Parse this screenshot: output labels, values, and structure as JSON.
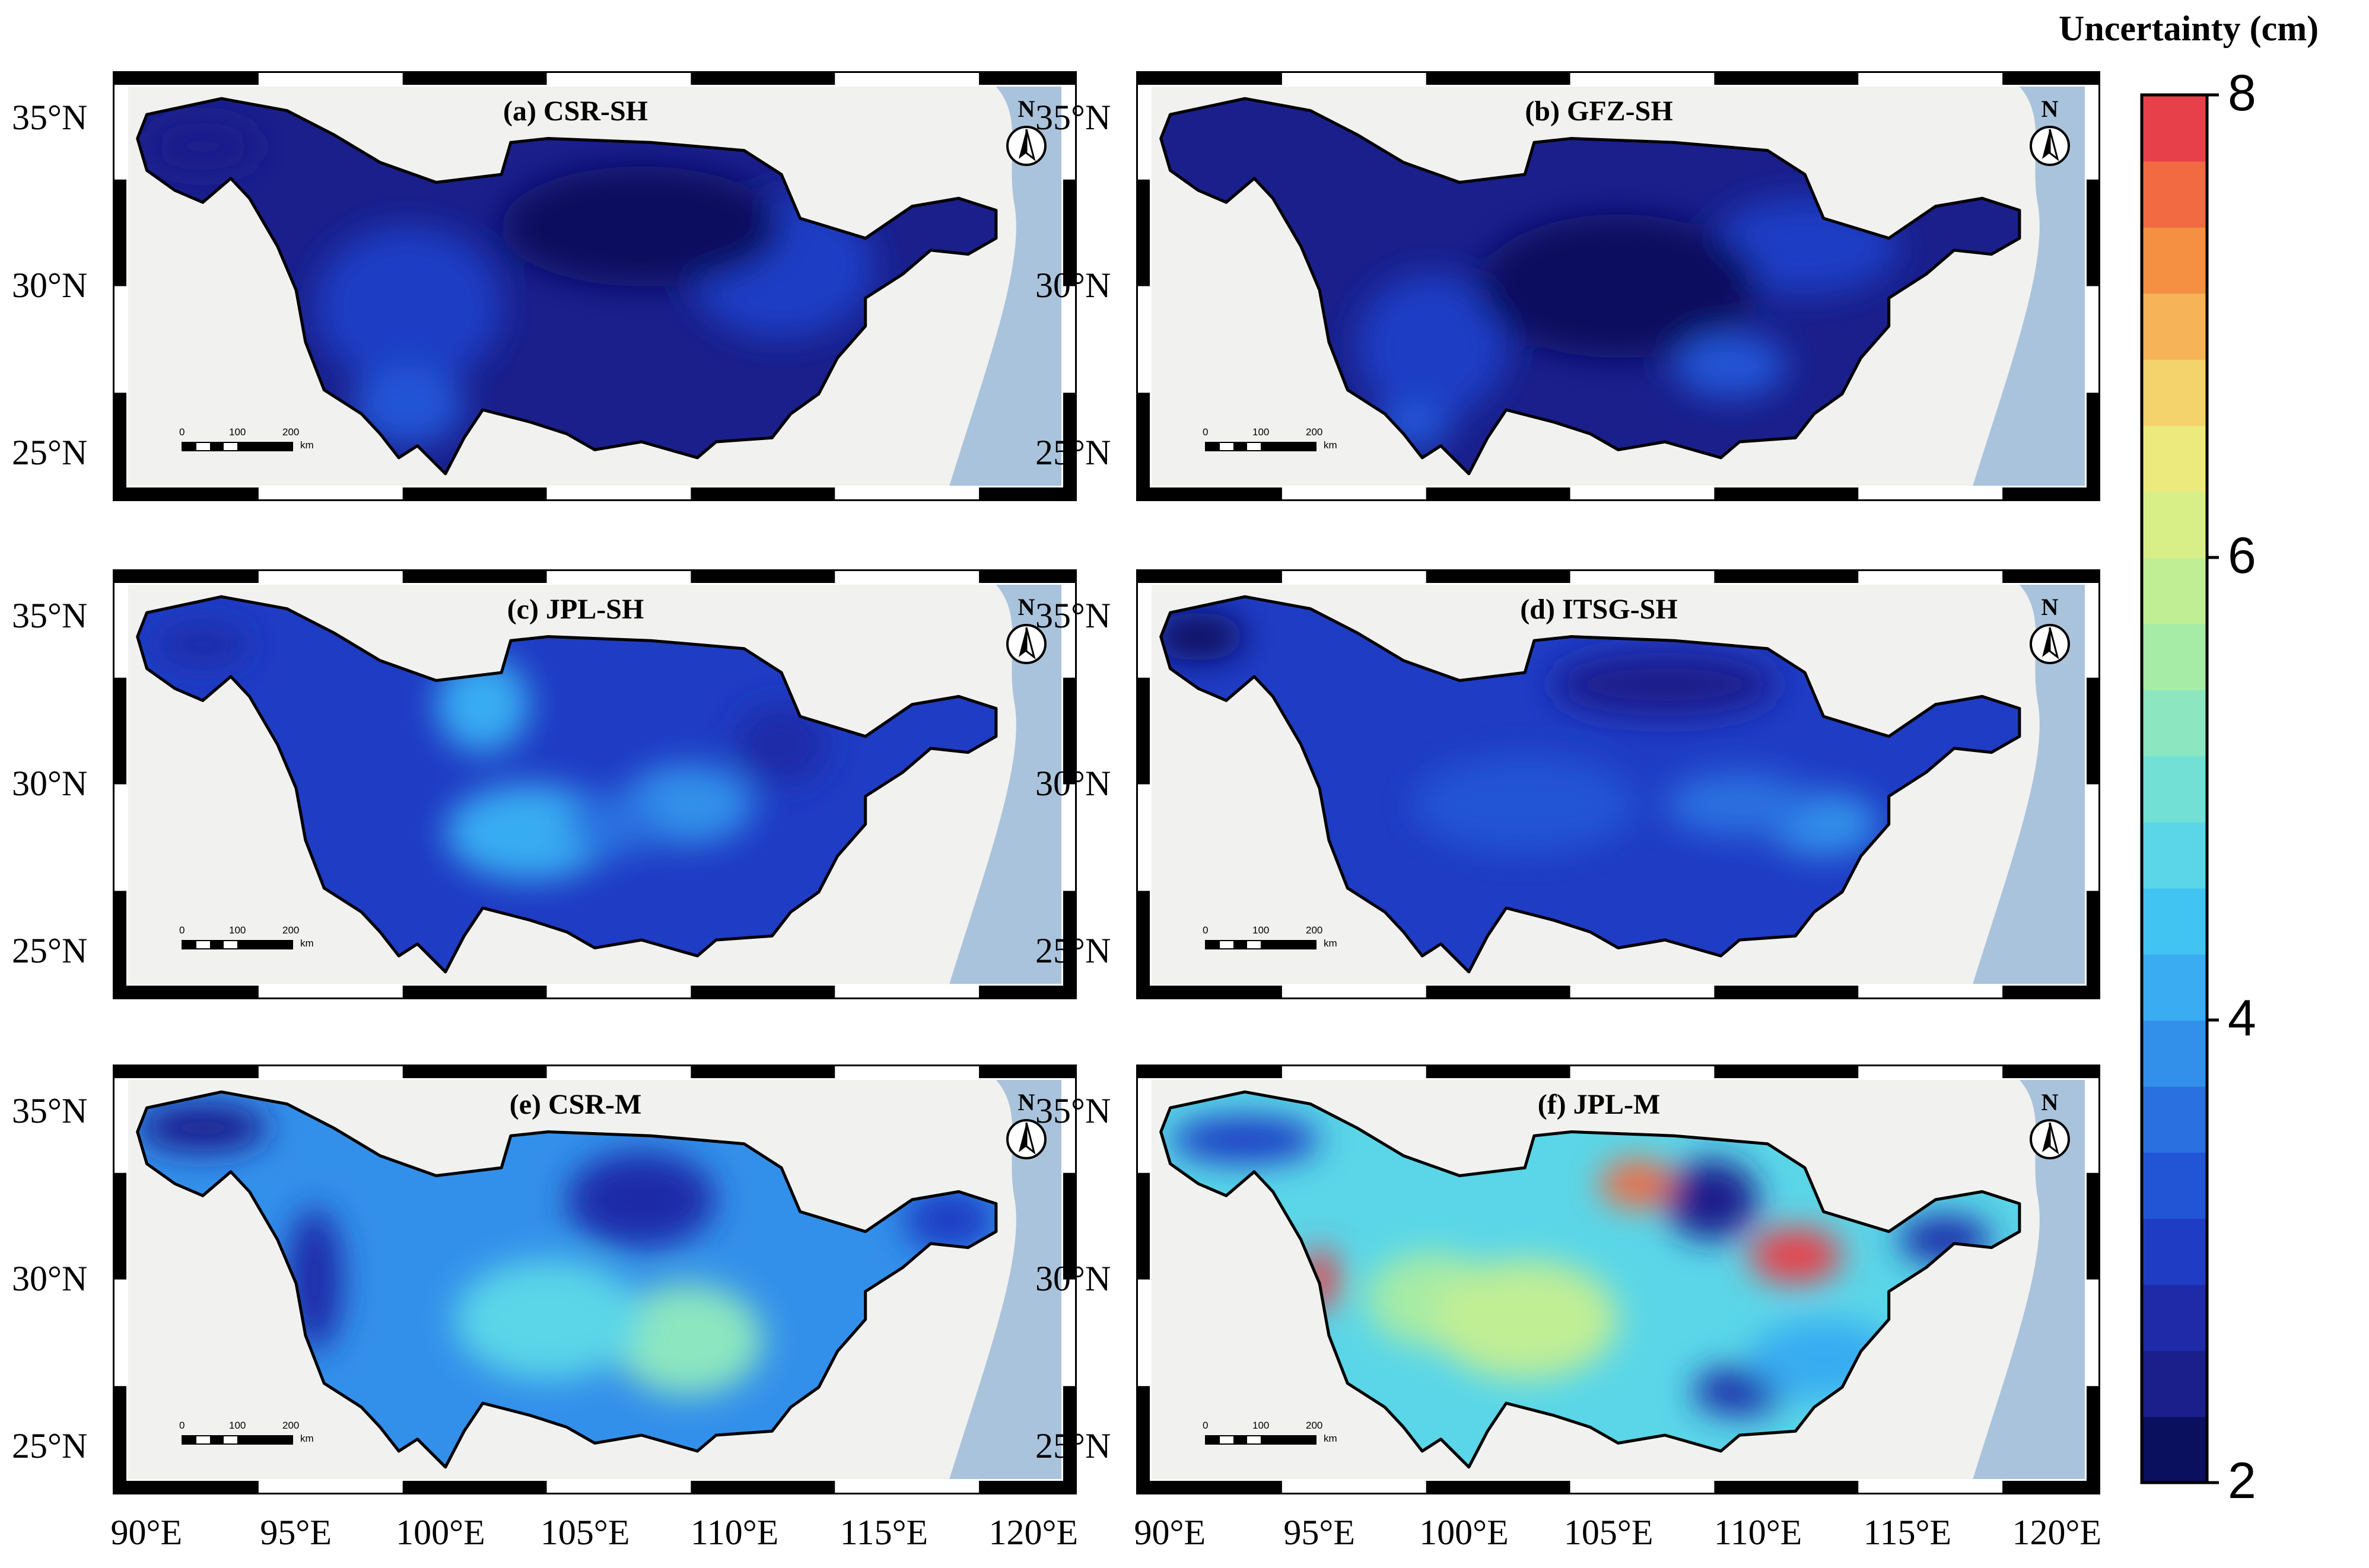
{
  "panels": [
    {
      "id": "a",
      "label": "(a) CSR-SH",
      "theme": "dark"
    },
    {
      "id": "b",
      "label": "(b) GFZ-SH",
      "theme": "dark2"
    },
    {
      "id": "c",
      "label": "(c) JPL-SH",
      "theme": "mid"
    },
    {
      "id": "d",
      "label": "(d) ITSG-SH",
      "theme": "mid2"
    },
    {
      "id": "e",
      "label": "(e) CSR-M",
      "theme": "light"
    },
    {
      "id": "f",
      "label": "(f) JPL-M",
      "theme": "hot"
    }
  ],
  "lat_labels": [
    "35°N",
    "30°N",
    "25°N"
  ],
  "lon_labels": [
    "90°E",
    "95°E",
    "100°E",
    "105°E",
    "110°E",
    "115°E",
    "120°E"
  ],
  "north_arrow": {
    "letter": "N",
    "icon": "north-arrow-icon"
  },
  "scale_bar": {
    "ticks": [
      "0",
      "100",
      "200"
    ],
    "unit": "km"
  },
  "colorbar": {
    "title": "Uncertainty (cm)",
    "ticks": [
      "8",
      "6",
      "4",
      "2"
    ],
    "min": 2,
    "max": 8,
    "colors": [
      "#0a0f5e",
      "#1a1f8c",
      "#1e2aa8",
      "#1f3cc4",
      "#2255d6",
      "#2a70e0",
      "#3390ea",
      "#39acf2",
      "#42c4f2",
      "#5ad6e8",
      "#73e0d6",
      "#8ce6c0",
      "#a6eba6",
      "#c0ee95",
      "#d8ef88",
      "#ecea7c",
      "#f4d26c",
      "#f6b358",
      "#f59042",
      "#f16a42",
      "#e8404a"
    ]
  },
  "colors": {
    "land": "#f1f1ef",
    "sea": "#a9c3dc",
    "frame": "#000000"
  }
}
